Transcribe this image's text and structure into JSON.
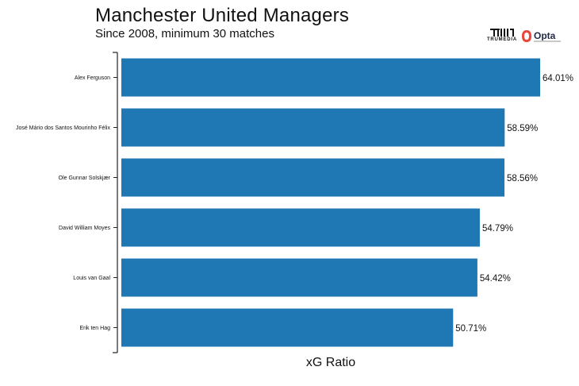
{
  "header": {
    "title": "Manchester United Managers",
    "subtitle": "Since 2008, minimum 30 matches",
    "trumedia_logo_text": "TRUMEDIA",
    "opta_logo_text": "Opta"
  },
  "colors": {
    "bar": "#1f77b4",
    "axis": "#222222",
    "opta_mark": "#e8473b"
  },
  "chart_data": {
    "type": "bar",
    "orientation": "horizontal",
    "title": "Manchester United Managers",
    "subtitle": "Since 2008, minimum 30 matches",
    "xlabel": "xG Ratio",
    "ylabel": "",
    "xlim": [
      0,
      64.01
    ],
    "grid": false,
    "categories": [
      "Alex Ferguson",
      "José Mário dos Santos Mourinho Félix",
      "Ole Gunnar Solskjær",
      "David William Moyes",
      "Louis van Gaal",
      "Erik ten Hag"
    ],
    "values": [
      64.01,
      58.59,
      58.56,
      54.79,
      54.42,
      50.71
    ],
    "data_labels": [
      "64.01%",
      "58.59%",
      "58.56%",
      "54.79%",
      "54.42%",
      "50.71%"
    ]
  }
}
